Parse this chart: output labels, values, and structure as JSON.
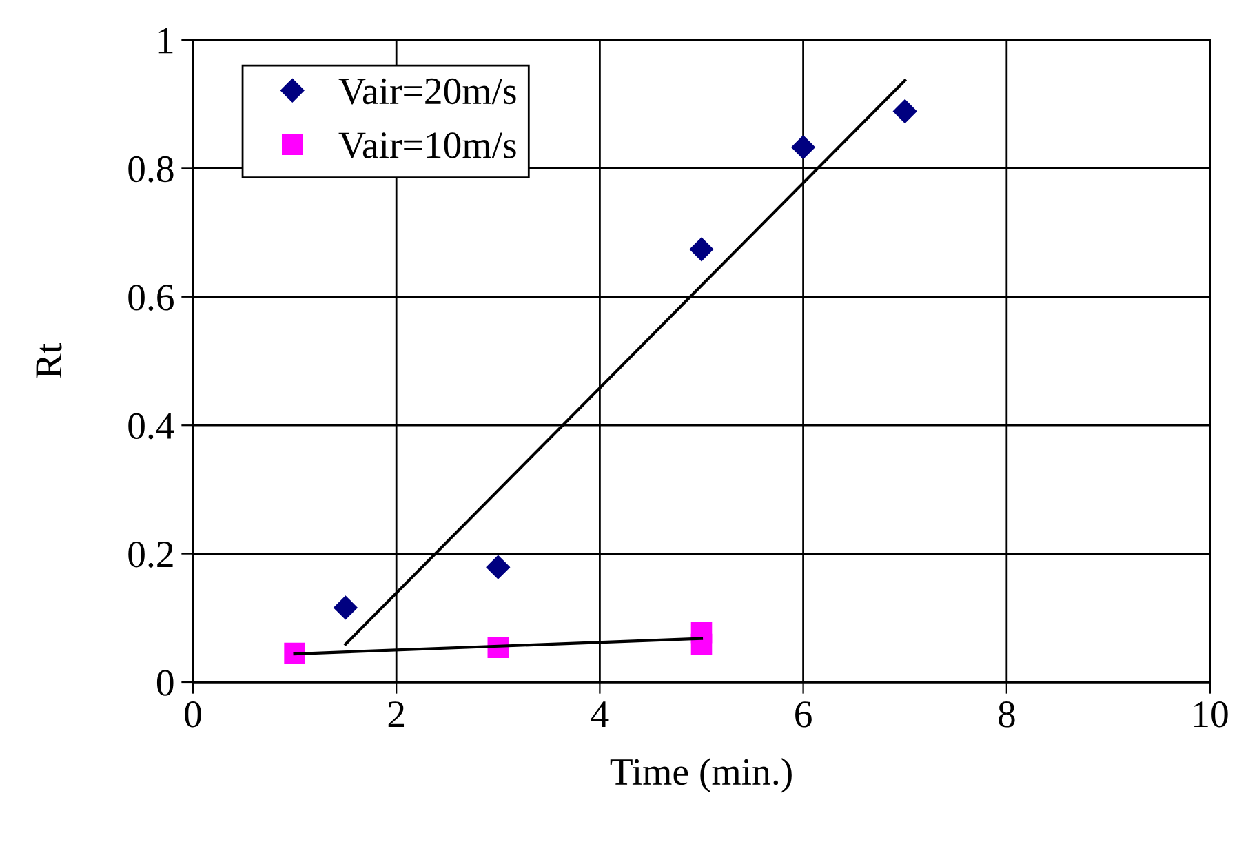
{
  "chart_data": {
    "type": "scatter",
    "xlabel": "Time (min.)",
    "ylabel": "Rt",
    "xlim": [
      0,
      10
    ],
    "xticks": [
      0,
      2,
      4,
      6,
      8,
      10
    ],
    "ylim": [
      0,
      1
    ],
    "yticks": [
      0,
      0.2,
      0.4,
      0.6,
      0.8,
      1
    ],
    "grid": true,
    "legend": "top left",
    "series": [
      {
        "name": "Vair=20m/s",
        "color": "#000080",
        "marker": "diamond",
        "x": [
          1.5,
          3,
          5,
          6,
          7
        ],
        "values": [
          0.116,
          0.179,
          0.674,
          0.833,
          0.889
        ]
      },
      {
        "name": "Vair=10m/s",
        "color": "#ff00ff",
        "marker": "square",
        "x": [
          1,
          3,
          5,
          5
        ],
        "values": [
          0.045,
          0.054,
          0.077,
          0.059
        ]
      },
      {
        "type": "line",
        "color": "#000000",
        "marker": "none",
        "x": [
          1.5,
          7
        ],
        "values": [
          0.059,
          0.937
        ]
      },
      {
        "type": "line",
        "color": "#000000",
        "marker": "none",
        "x": [
          1,
          5
        ],
        "values": [
          0.044,
          0.068
        ]
      }
    ]
  }
}
